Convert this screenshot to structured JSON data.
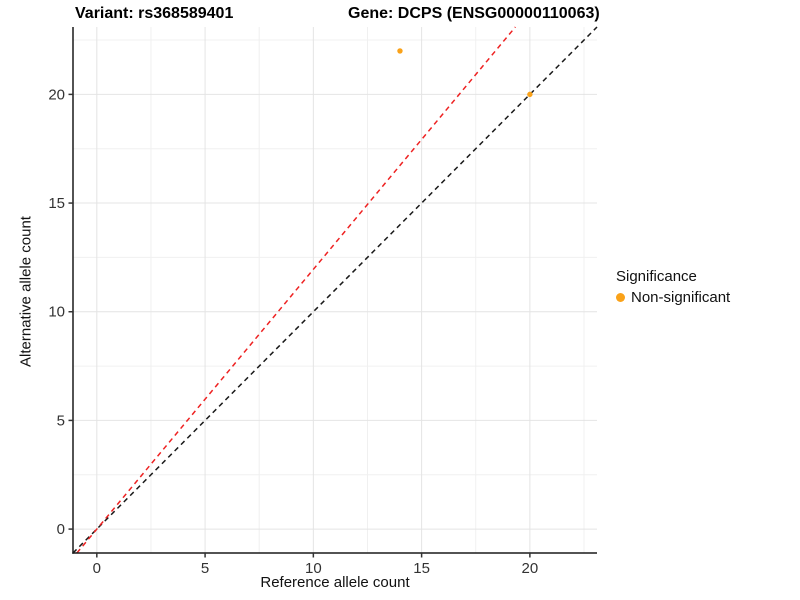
{
  "titles": {
    "left": "Variant: rs368589401",
    "right": "Gene: DCPS (ENSG00000110063)"
  },
  "chart_data": {
    "type": "scatter",
    "title_left": "Variant: rs368589401",
    "title_right": "Gene: DCPS (ENSG00000110063)",
    "xlabel": "Reference allele count",
    "ylabel": "Alternative allele count",
    "xlim": [
      -1.1,
      23.1
    ],
    "ylim": [
      -1.1,
      23.1
    ],
    "x_ticks": [
      0,
      5,
      10,
      15,
      20
    ],
    "y_ticks": [
      0,
      5,
      10,
      15,
      20
    ],
    "x_minor_ticks": [
      2.5,
      7.5,
      12.5,
      17.5,
      22.5
    ],
    "y_minor_ticks": [
      2.5,
      7.5,
      12.5,
      17.5,
      22.5
    ],
    "grid": true,
    "points": [
      {
        "x": 14,
        "y": 22,
        "series": "Non-significant"
      },
      {
        "x": 20,
        "y": 20,
        "series": "Non-significant"
      }
    ],
    "lines": [
      {
        "name": "identity-line",
        "slope": 1,
        "intercept": 0,
        "color": "#1a1a1a",
        "style": "dashed"
      },
      {
        "name": "ratio-line",
        "slope": 1.195,
        "intercept": 0,
        "color": "#ee2222",
        "style": "dashed"
      }
    ],
    "legend": {
      "position": "right",
      "title": "Significance",
      "items": [
        {
          "label": "Non-significant",
          "color": "#faa219"
        }
      ]
    },
    "point_color": "#faa219",
    "colors": {
      "major_grid": "#e4e4e4",
      "minor_grid": "#f0f0f0",
      "axis_line": "#1a1a1a",
      "tick_mark": "#333333",
      "tick_label": "#333333"
    }
  }
}
